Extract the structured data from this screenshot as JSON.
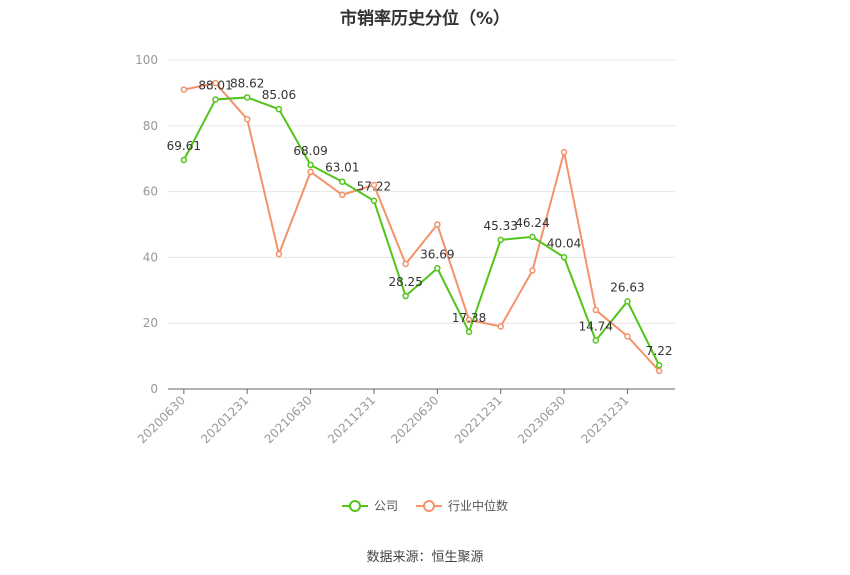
{
  "title": "市销率历史分位（%）",
  "source": "数据来源：恒生聚源",
  "colors": {
    "company": "#52c41a",
    "industry": "#f4926a",
    "grid": "#e6e6e6",
    "axis": "#999999"
  },
  "chart_data": {
    "type": "line",
    "x": [
      "20200630",
      "20200930",
      "20201231",
      "20210331",
      "20210630",
      "20210930",
      "20211231",
      "20220331",
      "20220630",
      "20220930",
      "20221231",
      "20230331",
      "20230630",
      "20230930",
      "20231231",
      "20240331"
    ],
    "x_tick_labels": [
      "20200630",
      "20201231",
      "20210630",
      "20211231",
      "20220630",
      "20221231",
      "20230630",
      "20231231"
    ],
    "ylim": [
      0,
      100
    ],
    "y_ticks": [
      0,
      20,
      40,
      60,
      80,
      100
    ],
    "grid": true,
    "legend_position": "bottom",
    "series": [
      {
        "name": "公司",
        "values": [
          69.61,
          88.01,
          88.62,
          85.06,
          68.09,
          63.01,
          57.22,
          28.25,
          36.69,
          17.38,
          45.33,
          46.24,
          40.04,
          14.74,
          26.63,
          7.22
        ]
      },
      {
        "name": "行业中位数",
        "values": [
          91,
          93,
          82,
          41,
          66,
          59,
          62,
          38,
          50,
          21,
          19,
          36,
          72,
          24,
          16,
          5.5
        ]
      }
    ]
  }
}
